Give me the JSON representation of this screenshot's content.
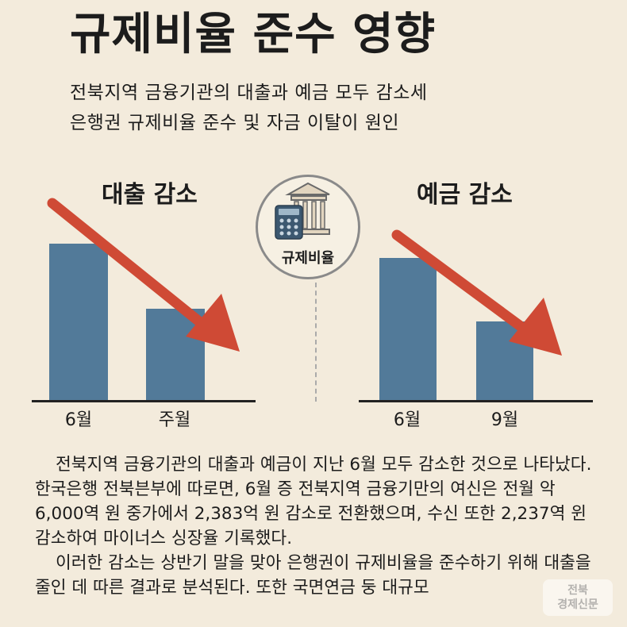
{
  "header": {
    "title": "규제비율 준수 영향",
    "subtitle_line1": "전북지역 금융기관의 대출과 예금 모두 감소세",
    "subtitle_line2": "은행권 규제비율 준수 및 자금 이탈이 원인"
  },
  "center_badge": {
    "label": "규제비율",
    "icons": [
      "calculator-icon",
      "bank-building-icon"
    ]
  },
  "colors": {
    "background": "#f3ebdc",
    "bar": "#527a99",
    "arrow": "#cf4a35"
  },
  "chart_data": [
    {
      "type": "bar",
      "title": "대출 감소",
      "categories": [
        "6월",
        "주월"
      ],
      "values": [
        0.82,
        0.48
      ],
      "trend": "down"
    },
    {
      "type": "bar",
      "title": "예금 감소",
      "categories": [
        "6월",
        "9월"
      ],
      "values": [
        0.85,
        0.47
      ],
      "trend": "down"
    }
  ],
  "article": {
    "paragraph1": "전북지역 금융기관의 대출과 예금이 지난 6월 모두 감소한 것으로 나타났다. 한국은행 전북븐부에 따로면, 6월 증 전북지역 금융기만의 여신은 전월 악 6,000역 원 중가에서 2,383억 원 감소로 전환했으며, 수신 또한 2,237역 윈 감소하여 마이너스 싱장율 기록했다.",
    "paragraph2": "이러한 감소는 상반기 말을 맞아 은행권이 규제비율을 준수하기 위해 대출을 줄인 데 따른 결과로 분석된다. 또한 국면연금 둥 대규모"
  },
  "watermark": {
    "line1": "전북",
    "line2": "경제신문"
  }
}
